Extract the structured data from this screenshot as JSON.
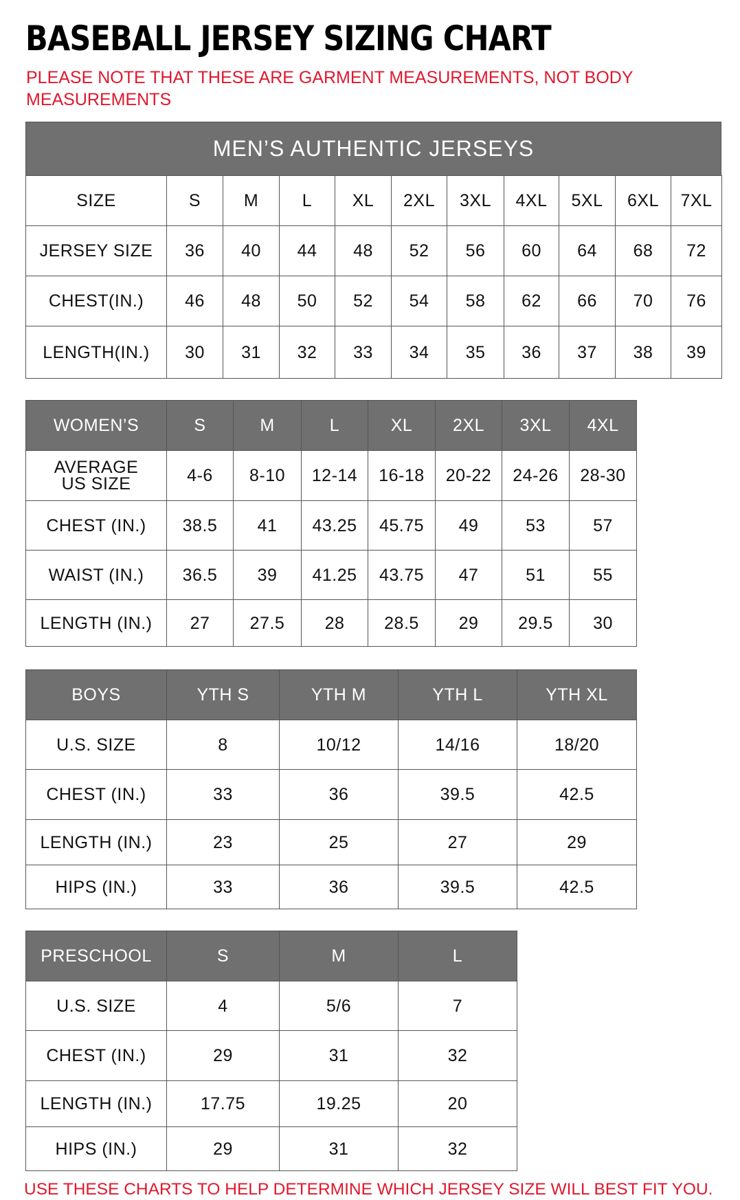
{
  "title": "BASEBALL JERSEY SIZING CHART",
  "note": "PLEASE NOTE THAT THESE ARE GARMENT MEASUREMENTS, NOT BODY MEASUREMENTS",
  "footer": "USE THESE CHARTS TO HELP DETERMINE WHICH JERSEY SIZE WILL BEST FIT YOU.",
  "colors": {
    "header_gray": "#707070",
    "note_red": "#e0182d"
  },
  "mens": {
    "caption": "MEN’S AUTHENTIC JERSEYS",
    "rows": [
      [
        "SIZE",
        "S",
        "M",
        "L",
        "XL",
        "2XL",
        "3XL",
        "4XL",
        "5XL",
        "6XL",
        "7XL"
      ],
      [
        "JERSEY SIZE",
        "36",
        "40",
        "44",
        "48",
        "52",
        "56",
        "60",
        "64",
        "68",
        "72"
      ],
      [
        "CHEST(IN.)",
        "46",
        "48",
        "50",
        "52",
        "54",
        "58",
        "62",
        "66",
        "70",
        "76"
      ],
      [
        "LENGTH(IN.)",
        "30",
        "31",
        "32",
        "33",
        "34",
        "35",
        "36",
        "37",
        "38",
        "39"
      ]
    ]
  },
  "womens": {
    "rows": [
      [
        "WOMEN’S",
        "S",
        "M",
        "L",
        "XL",
        "2XL",
        "3XL",
        "4XL"
      ],
      [
        "AVERAGE US SIZE",
        "4-6",
        "8-10",
        "12-14",
        "16-18",
        "20-22",
        "24-26",
        "28-30"
      ],
      [
        "CHEST (IN.)",
        "38.5",
        "41",
        "43.25",
        "45.75",
        "49",
        "53",
        "57"
      ],
      [
        "WAIST (IN.)",
        "36.5",
        "39",
        "41.25",
        "43.75",
        "47",
        "51",
        "55"
      ],
      [
        "LENGTH (IN.)",
        "27",
        "27.5",
        "28",
        "28.5",
        "29",
        "29.5",
        "30"
      ]
    ]
  },
  "boys": {
    "rows": [
      [
        "BOYS",
        "YTH S",
        "YTH M",
        "YTH L",
        "YTH XL"
      ],
      [
        "U.S. SIZE",
        "8",
        "10/12",
        "14/16",
        "18/20"
      ],
      [
        "CHEST (IN.)",
        "33",
        "36",
        "39.5",
        "42.5"
      ],
      [
        "LENGTH (IN.)",
        "23",
        "25",
        "27",
        "29"
      ],
      [
        "HIPS (IN.)",
        "33",
        "36",
        "39.5",
        "42.5"
      ]
    ]
  },
  "preschool": {
    "rows": [
      [
        "PRESCHOOL",
        "S",
        "M",
        "L"
      ],
      [
        "U.S. SIZE",
        "4",
        "5/6",
        "7"
      ],
      [
        "CHEST (IN.)",
        "29",
        "31",
        "32"
      ],
      [
        "LENGTH (IN.)",
        "17.75",
        "19.25",
        "20"
      ],
      [
        "HIPS (IN.)",
        "29",
        "31",
        "32"
      ]
    ]
  }
}
